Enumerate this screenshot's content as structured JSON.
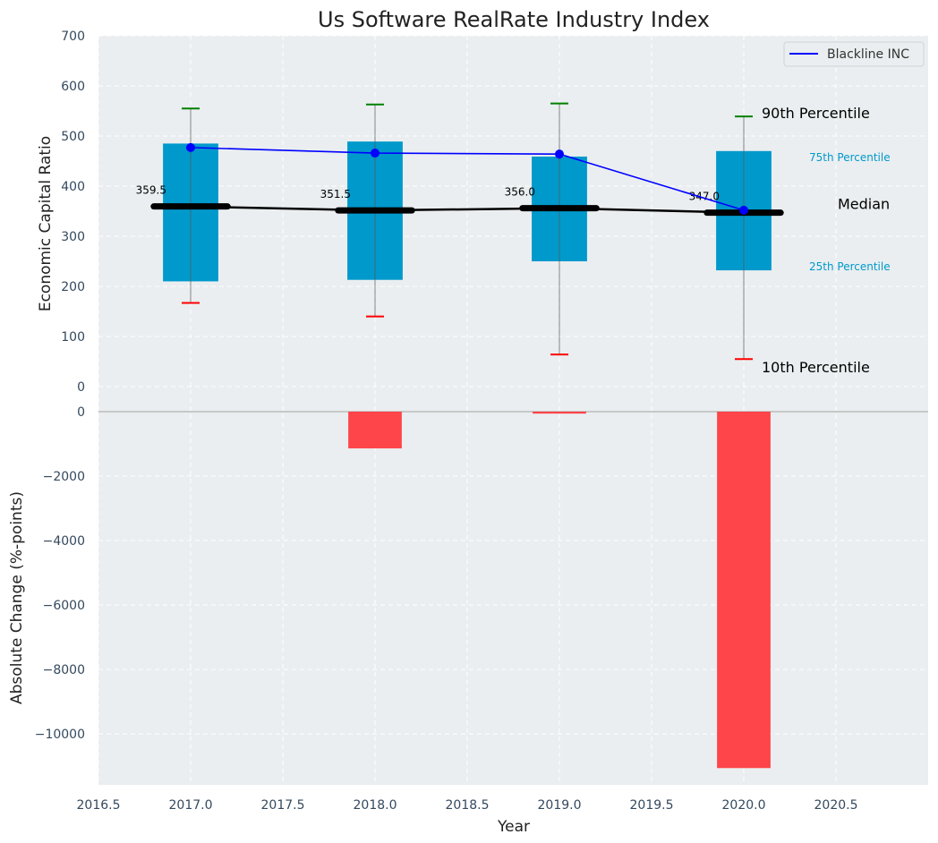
{
  "chart_data": {
    "type": "bar",
    "title": "Us Software RealRate Industry Index",
    "colors": {
      "box": "#0099cc",
      "blackline": "#0000ff",
      "median": "#000000",
      "p90_cap": "#008000",
      "p10_cap": "#ff0000",
      "change_bar": "#ff3b3f",
      "background": "#eaeef0",
      "annotation_small": "#0099cc"
    },
    "x": [
      2017,
      2018,
      2019,
      2020
    ],
    "top_panel": {
      "ylabel": "Economic Capital Ratio",
      "ylim": [
        -50,
        700
      ],
      "yticks": [
        0,
        100,
        200,
        300,
        400,
        500,
        600,
        700
      ],
      "p10": [
        167,
        140,
        64,
        55
      ],
      "p25": [
        210,
        213,
        250,
        232
      ],
      "median": [
        359.5,
        351.5,
        356.0,
        347.0
      ],
      "median_labels": [
        "359.5",
        "351.5",
        "356.0",
        "347.0"
      ],
      "p75": [
        485,
        489,
        459,
        470
      ],
      "p90": [
        555,
        563,
        565,
        539
      ],
      "series": [
        {
          "name": "Blackline INC",
          "values": [
            477,
            466,
            464,
            352
          ]
        }
      ],
      "legend": {
        "entries": [
          "Blackline INC"
        ],
        "placement": "top-right"
      },
      "annotations": {
        "p90": "90th Percentile",
        "p75": "75th Percentile",
        "median": "Median",
        "p25": "25th Percentile",
        "p10": "10th Percentile"
      }
    },
    "bottom_panel": {
      "ylabel": "Absolute Change (%-points)",
      "ylim": [
        -11580,
        0
      ],
      "yticks": [
        0,
        -2000,
        -4000,
        -6000,
        -8000,
        -10000
      ],
      "ytick_labels": [
        "0",
        "−2000",
        "−4000",
        "−6000",
        "−8000",
        "−10000"
      ],
      "values": [
        0,
        -1140,
        -60,
        -11060
      ]
    },
    "xlabel": "Year",
    "xlim": [
      2016.5,
      2021.0
    ],
    "xticks": [
      2016.5,
      2017.0,
      2017.5,
      2018.0,
      2018.5,
      2019.0,
      2019.5,
      2020.0,
      2020.5
    ],
    "xtick_labels": [
      "2016.5",
      "2017.0",
      "2017.5",
      "2018.0",
      "2018.5",
      "2019.0",
      "2019.5",
      "2020.0",
      "2020.5"
    ],
    "grid": true
  }
}
